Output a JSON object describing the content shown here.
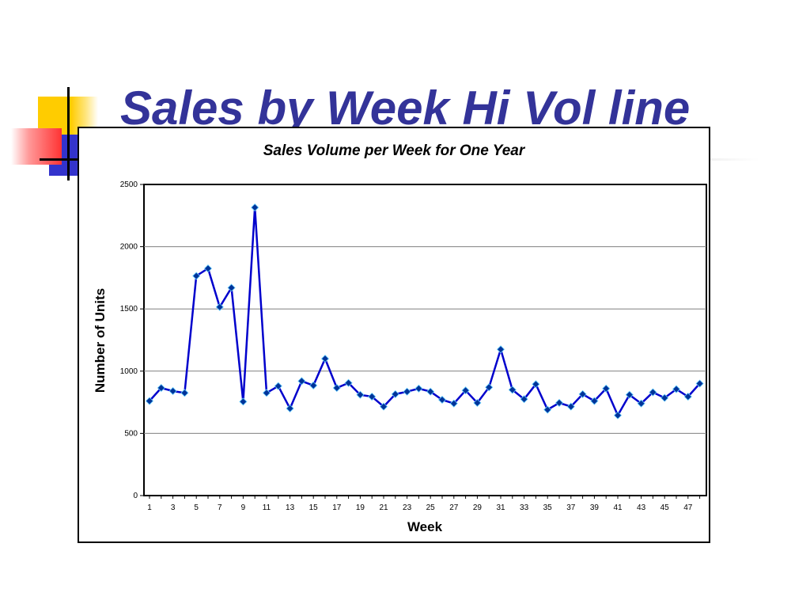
{
  "slide": {
    "title": "Sales by Week Hi Vol line"
  },
  "colors": {
    "title": "#333399",
    "line": "#0000CC",
    "marker": "#003399",
    "decor_yellow": "#FFCC00",
    "decor_red": "#FF3333",
    "decor_blue": "#3333CC"
  },
  "chart_data": {
    "type": "line",
    "title": "Sales Volume per Week for One Year",
    "xlabel": "Week",
    "ylabel": "Number of Units",
    "ylim": [
      0,
      2500
    ],
    "yticks": [
      0,
      500,
      1000,
      1500,
      2000,
      2500
    ],
    "x": [
      1,
      2,
      3,
      4,
      5,
      6,
      7,
      8,
      9,
      10,
      11,
      12,
      13,
      14,
      15,
      16,
      17,
      18,
      19,
      20,
      21,
      22,
      23,
      24,
      25,
      26,
      27,
      28,
      29,
      30,
      31,
      32,
      33,
      34,
      35,
      36,
      37,
      38,
      39,
      40,
      41,
      42,
      43,
      44,
      45,
      46,
      47,
      48
    ],
    "xtick_labels": [
      "1",
      "3",
      "5",
      "7",
      "9",
      "11",
      "13",
      "15",
      "17",
      "19",
      "21",
      "23",
      "25",
      "27",
      "29",
      "31",
      "33",
      "35",
      "37",
      "39",
      "41",
      "43",
      "45",
      "47"
    ],
    "grid": "horizontal",
    "legend": "none",
    "series": [
      {
        "values": [
          760,
          865,
          840,
          825,
          1765,
          1825,
          1515,
          1670,
          755,
          2315,
          825,
          880,
          700,
          920,
          885,
          1100,
          865,
          905,
          810,
          795,
          715,
          815,
          835,
          860,
          835,
          770,
          740,
          845,
          745,
          870,
          1175,
          850,
          775,
          895,
          690,
          745,
          715,
          815,
          760,
          860,
          645,
          810,
          740,
          830,
          785,
          855,
          795,
          900
        ]
      }
    ]
  }
}
